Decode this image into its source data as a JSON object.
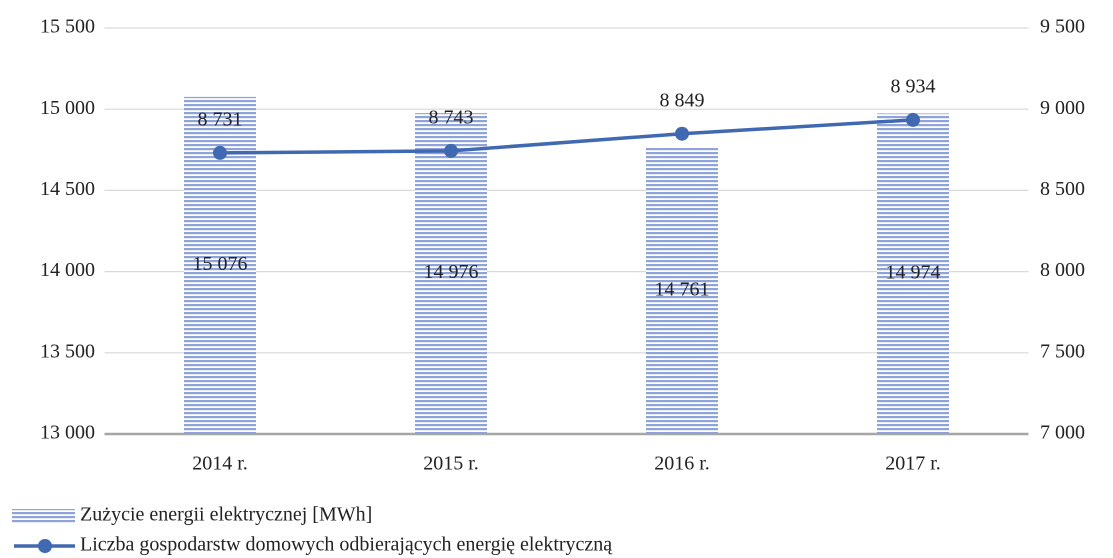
{
  "chart_data": {
    "type": "bar",
    "categories": [
      "2014 r.",
      "2015 r.",
      "2016 r.",
      "2017 r."
    ],
    "series": [
      {
        "name": "Zużycie energii elektrycznej [MWh]",
        "type": "bar",
        "color": "#8fa3d9",
        "values": [
          15076,
          14976,
          14761,
          14974
        ],
        "value_labels": [
          "15 076",
          "14 976",
          "14 761",
          "14 974"
        ]
      },
      {
        "name": "Liczba gospodarstw domowych odbierających energię elektryczną",
        "type": "line",
        "axis": "y2",
        "color": "#4169b2",
        "values": [
          8731,
          8743,
          8849,
          8934
        ],
        "value_labels": [
          "8 731",
          "8 743",
          "8 849",
          "8 934"
        ]
      }
    ],
    "ylim": [
      13000,
      15500
    ],
    "yticks": [
      {
        "value": 13000,
        "label": "13 000"
      },
      {
        "value": 13500,
        "label": "13 500"
      },
      {
        "value": 14000,
        "label": "14 000"
      },
      {
        "value": 14500,
        "label": "14 500"
      },
      {
        "value": 15000,
        "label": "15 000"
      },
      {
        "value": 15500,
        "label": "15 500"
      }
    ],
    "y2lim": [
      7000,
      9500
    ],
    "y2ticks": [
      {
        "value": 7000,
        "label": "7 000"
      },
      {
        "value": 7500,
        "label": "7 500"
      },
      {
        "value": 8000,
        "label": "8 000"
      },
      {
        "value": 8500,
        "label": "8 500"
      },
      {
        "value": 9000,
        "label": "9 000"
      },
      {
        "value": 9500,
        "label": "9 500"
      }
    ],
    "grid": true,
    "legend": "bottom-left"
  }
}
